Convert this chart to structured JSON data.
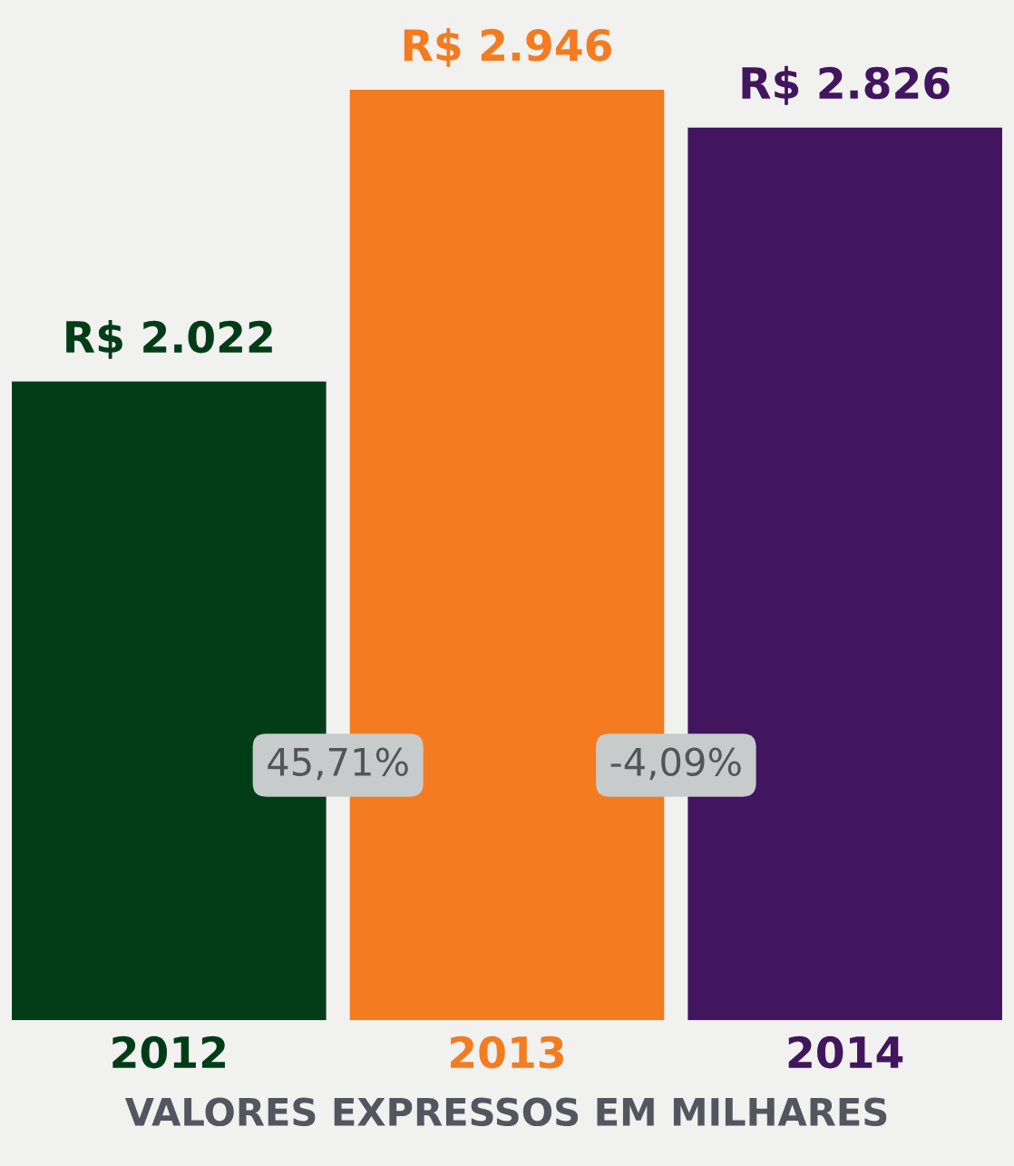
{
  "chart_data": {
    "type": "bar",
    "categories": [
      "2012",
      "2013",
      "2014"
    ],
    "values": [
      2022,
      2946,
      2826
    ],
    "colors": [
      "#003d17",
      "#f47b20",
      "#42155f"
    ],
    "value_labels": [
      "R$ 2.022",
      "R$ 2.946",
      "R$ 2.826"
    ],
    "xlabel": "VALORES EXPRESSOS EM MILHARES",
    "annotations": [
      "45,71%",
      "-4,09%"
    ],
    "ylim": [
      0,
      3230
    ],
    "grid": false,
    "legend": false
  }
}
